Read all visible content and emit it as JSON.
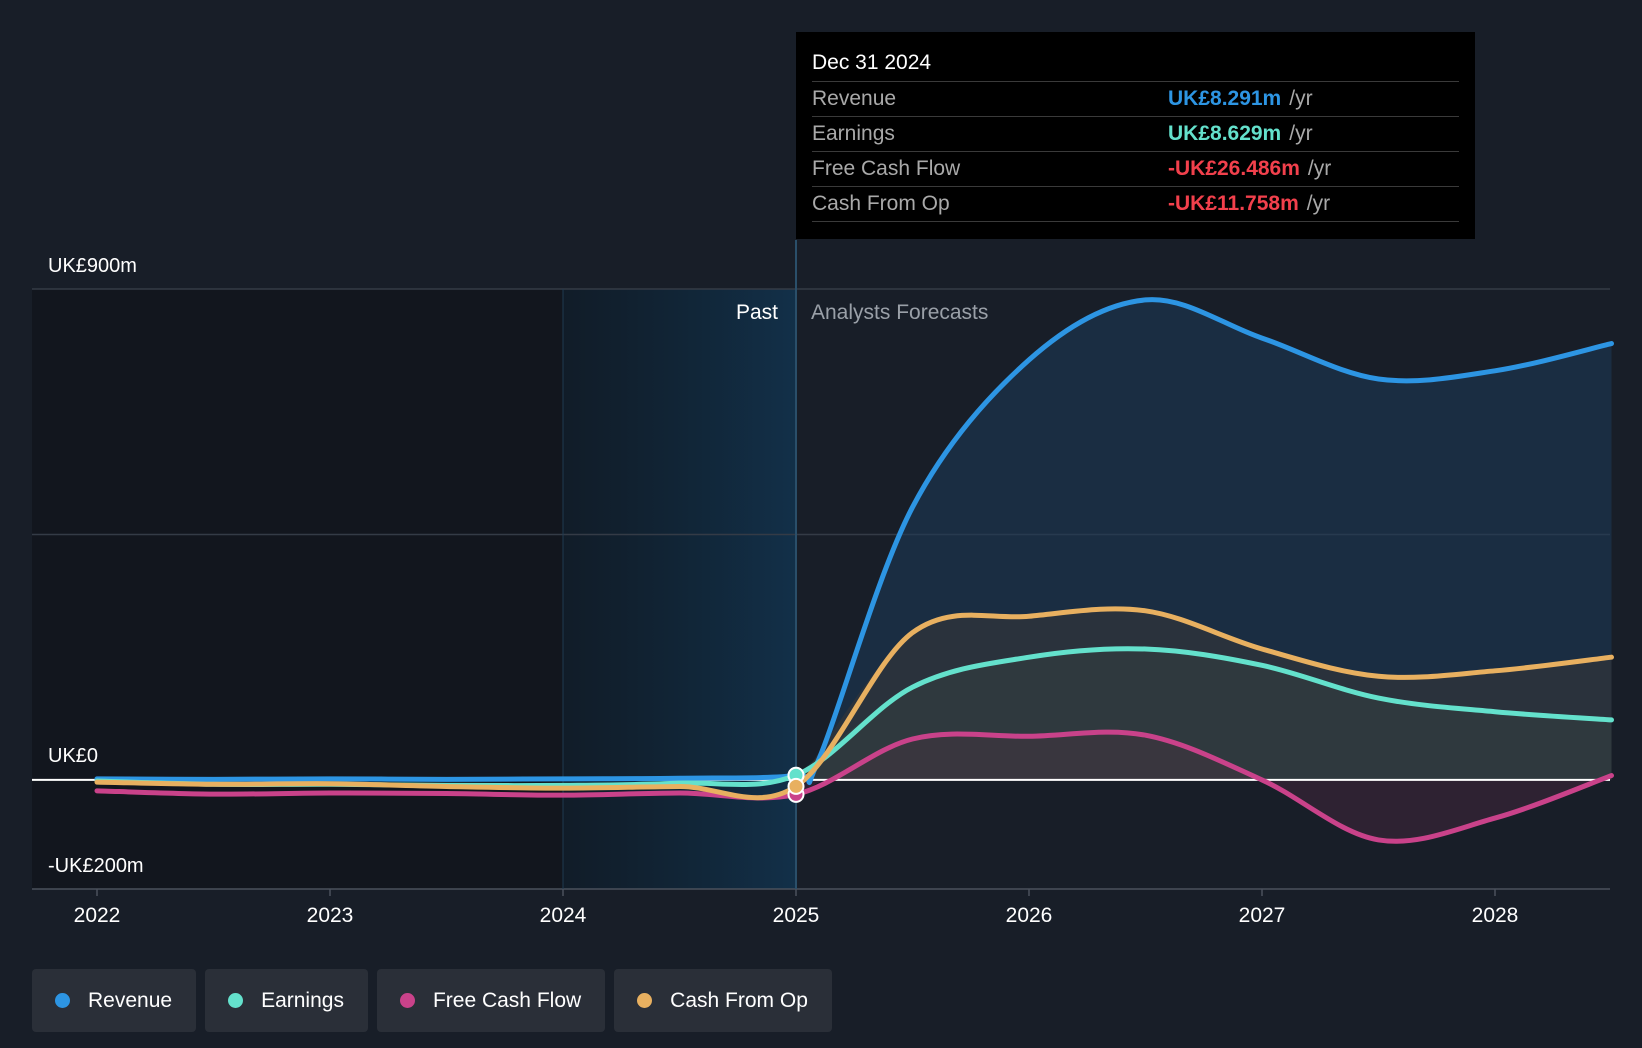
{
  "tooltip": {
    "date": "Dec 31 2024",
    "rows": [
      {
        "label": "Revenue",
        "value": "UK£8.291m",
        "unit": "/yr",
        "color": "#2d95e3"
      },
      {
        "label": "Earnings",
        "value": "UK£8.629m",
        "unit": "/yr",
        "color": "#64e1cc"
      },
      {
        "label": "Free Cash Flow",
        "value": "-UK£26.486m",
        "unit": "/yr",
        "color": "#f2404c"
      },
      {
        "label": "Cash From Op",
        "value": "-UK£11.758m",
        "unit": "/yr",
        "color": "#f2404c"
      }
    ]
  },
  "legend": [
    {
      "label": "Revenue",
      "color": "#2d95e3"
    },
    {
      "label": "Earnings",
      "color": "#64e1cc"
    },
    {
      "label": "Free Cash Flow",
      "color": "#c9428a"
    },
    {
      "label": "Cash From Op",
      "color": "#e8b060"
    }
  ],
  "chart_data": {
    "type": "area",
    "ylabels": {
      "top": "UK£900m",
      "zero": "UK£0",
      "bottom": "-UK£200m"
    },
    "ylim": [
      -200,
      900
    ],
    "xlim": [
      2021.7,
      2028.5
    ],
    "xticks": [
      "2022",
      "2023",
      "2024",
      "2025",
      "2026",
      "2027",
      "2028"
    ],
    "past_label": "Past",
    "forecast_label": "Analysts Forecasts",
    "divider_x": 2025.0,
    "highlight_start_x": 2024.0,
    "grid": true,
    "legend_position": "bottom-left",
    "series": [
      {
        "name": "Revenue",
        "color": "#2d95e3",
        "points": [
          [
            2022.0,
            2
          ],
          [
            2022.5,
            1
          ],
          [
            2023.0,
            2
          ],
          [
            2023.5,
            1
          ],
          [
            2024.0,
            2
          ],
          [
            2024.5,
            3
          ],
          [
            2025.0,
            8.3
          ],
          [
            2025.1,
            40
          ],
          [
            2025.5,
            500
          ],
          [
            2026.0,
            770
          ],
          [
            2026.5,
            880
          ],
          [
            2027.0,
            810
          ],
          [
            2027.5,
            735
          ],
          [
            2028.0,
            750
          ],
          [
            2028.5,
            800
          ]
        ]
      },
      {
        "name": "Earnings",
        "color": "#64e1cc",
        "points": [
          [
            2022.0,
            -2
          ],
          [
            2022.5,
            -8
          ],
          [
            2023.0,
            -8
          ],
          [
            2023.5,
            -10
          ],
          [
            2024.0,
            -10
          ],
          [
            2024.5,
            -6
          ],
          [
            2025.0,
            8.6
          ],
          [
            2025.5,
            170
          ],
          [
            2026.0,
            225
          ],
          [
            2026.5,
            240
          ],
          [
            2027.0,
            210
          ],
          [
            2027.5,
            150
          ],
          [
            2028.0,
            125
          ],
          [
            2028.5,
            110
          ]
        ]
      },
      {
        "name": "Free Cash Flow",
        "color": "#c9428a",
        "points": [
          [
            2022.0,
            -20
          ],
          [
            2022.5,
            -26
          ],
          [
            2023.0,
            -24
          ],
          [
            2023.5,
            -25
          ],
          [
            2024.0,
            -28
          ],
          [
            2024.5,
            -24
          ],
          [
            2025.0,
            -26.5
          ],
          [
            2025.5,
            75
          ],
          [
            2026.0,
            80
          ],
          [
            2026.5,
            82
          ],
          [
            2027.0,
            0
          ],
          [
            2027.5,
            -110
          ],
          [
            2028.0,
            -70
          ],
          [
            2028.5,
            8
          ]
        ]
      },
      {
        "name": "Cash From Op",
        "color": "#e8b060",
        "points": [
          [
            2022.0,
            -4
          ],
          [
            2022.5,
            -8
          ],
          [
            2023.0,
            -7
          ],
          [
            2023.5,
            -12
          ],
          [
            2024.0,
            -15
          ],
          [
            2024.5,
            -12
          ],
          [
            2025.0,
            -11.8
          ],
          [
            2025.5,
            270
          ],
          [
            2026.0,
            300
          ],
          [
            2026.5,
            310
          ],
          [
            2027.0,
            240
          ],
          [
            2027.5,
            190
          ],
          [
            2028.0,
            200
          ],
          [
            2028.5,
            225
          ]
        ]
      }
    ]
  }
}
